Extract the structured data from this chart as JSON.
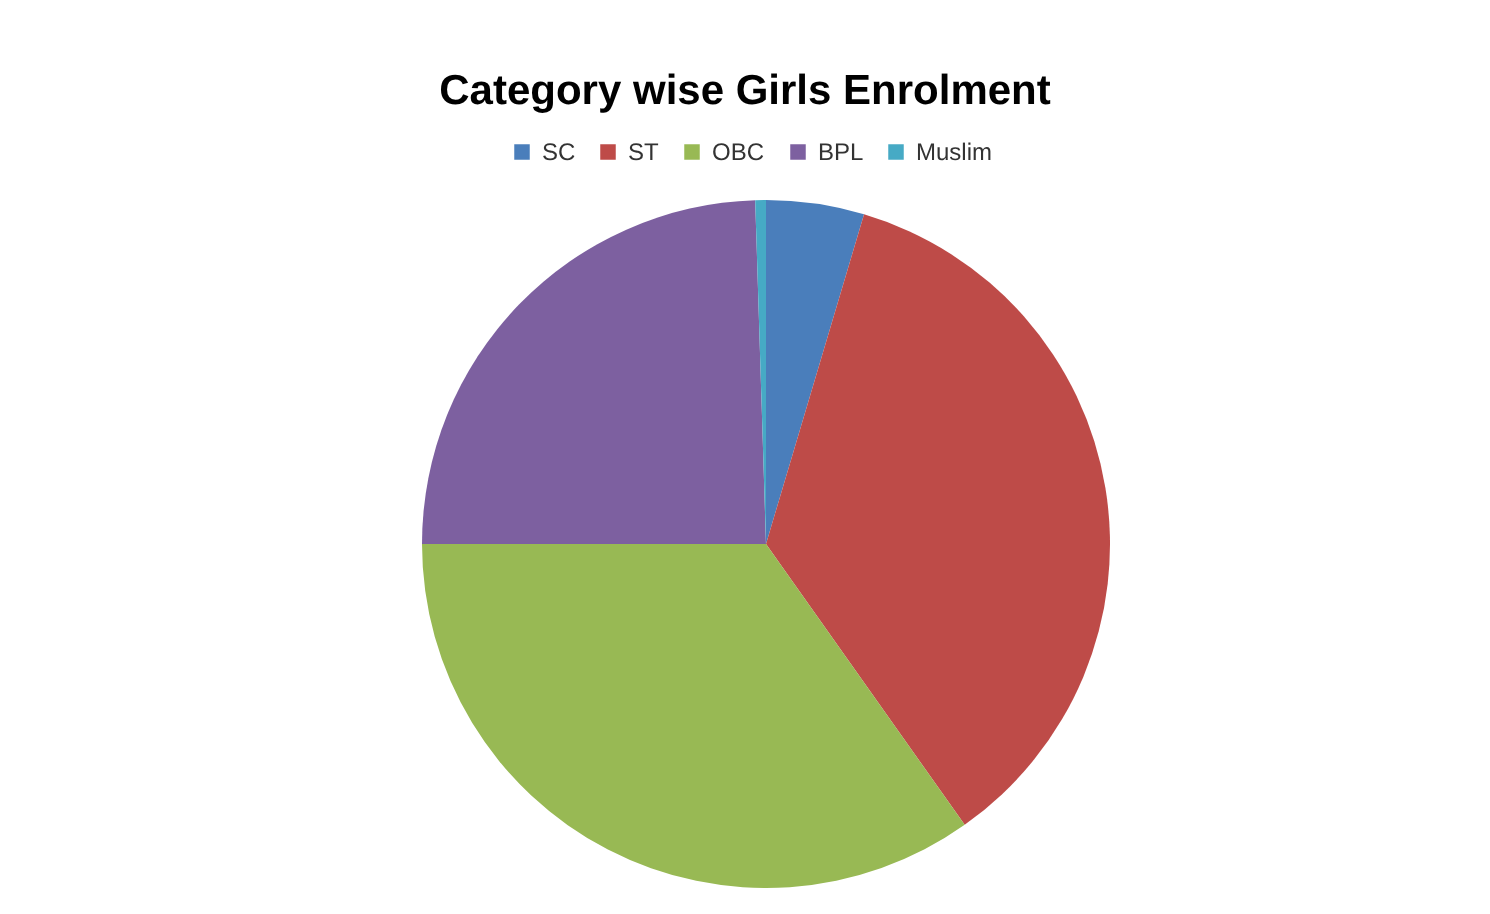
{
  "chart_data": {
    "type": "pie",
    "title": "Category wise Girls Enrolment",
    "categories": [
      "SC",
      "ST",
      "OBC",
      "BPL",
      "Muslim"
    ],
    "values": [
      4.6,
      35.6,
      34.8,
      24.5,
      0.5
    ],
    "colors": [
      "#4a7ebb",
      "#be4b48",
      "#98b954",
      "#7d60a0",
      "#46aac5"
    ],
    "legend": "top"
  }
}
